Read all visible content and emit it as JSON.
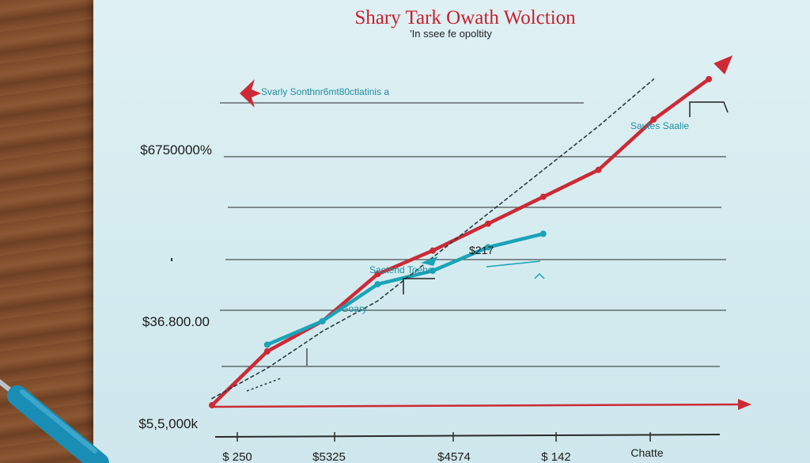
{
  "chart_data": {
    "type": "line",
    "title": "Shary Tark Owath Wolction",
    "subtitle": "'In ssee fe opoltity",
    "y_tick_labels": [
      "$6750000%",
      "$36.800.00",
      "$5,5,000k"
    ],
    "x_tick_labels": [
      "$ 250",
      "$5325",
      "$4574",
      "$ 142"
    ],
    "xlabel": "Chatte",
    "annotations": [
      "Svarly Sonthnr6mt80ctlatinis a",
      "Sautes Saalie",
      "Saotehd Toebs",
      "IGoary",
      "$217"
    ],
    "series": [
      {
        "color": "#cc2a36",
        "points": [
          [
            0,
            0
          ],
          [
            1,
            1.6
          ],
          [
            2,
            2.5
          ],
          [
            3,
            3.9
          ],
          [
            4,
            4.6
          ],
          [
            5,
            5.4
          ],
          [
            6,
            6.2
          ],
          [
            7,
            7.0
          ],
          [
            8,
            8.5
          ],
          [
            9,
            9.7
          ]
        ]
      },
      {
        "color": "#1ba3b8",
        "points": [
          [
            1,
            1.8
          ],
          [
            2,
            2.5
          ],
          [
            3,
            3.6
          ],
          [
            4,
            4.0
          ],
          [
            5,
            4.7
          ],
          [
            6,
            5.1
          ]
        ]
      },
      {
        "color": "#2a3a40",
        "style": "dashed",
        "points": [
          [
            0,
            0.2
          ],
          [
            1,
            1.1
          ],
          [
            2,
            2.2
          ],
          [
            3,
            3.1
          ],
          [
            4,
            4.4
          ],
          [
            5,
            5.7
          ],
          [
            6,
            7.0
          ],
          [
            7,
            8.3
          ],
          [
            8,
            9.7
          ]
        ]
      }
    ],
    "arrows": [
      {
        "color": "#cc2a36"
      }
    ],
    "grid": true
  }
}
